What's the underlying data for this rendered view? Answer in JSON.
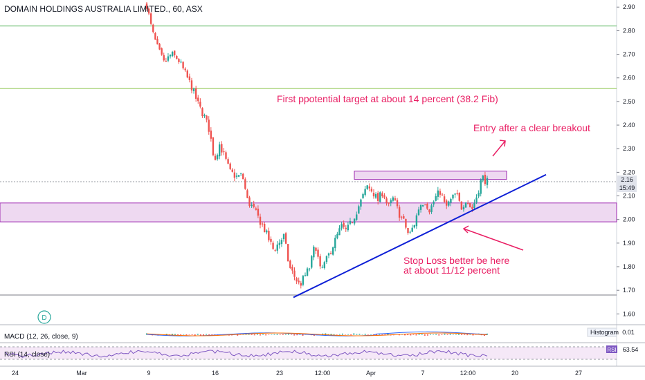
{
  "chart_data": {
    "type": "candlestick",
    "title": "DOMAIN HOLDINGS AUSTRALIA LIMITED., 60, ASX",
    "ylim": [
      1.56,
      2.93
    ],
    "y_ticks": [
      "2.90",
      "2.80",
      "2.70",
      "2.60",
      "2.50",
      "2.40",
      "2.30",
      "2.20",
      "2.10",
      "2.00",
      "1.90",
      "1.80",
      "1.70",
      "1.60"
    ],
    "price_label": "2.16",
    "time_label": "15:49",
    "x_ticks": [
      "24",
      "Mar",
      "9",
      "16",
      "23",
      "12:00",
      "Apr",
      "7",
      "12:00",
      "20",
      "27"
    ],
    "horizontal_levels": [
      {
        "price": 2.82,
        "color": "#4caf50"
      },
      {
        "price": 2.555,
        "color": "#8bc34a"
      },
      {
        "price": 1.68,
        "color": "#787b86"
      },
      {
        "price": 2.16,
        "color": "#9598a1",
        "dashed": true
      }
    ],
    "support_zone": {
      "from": 1.99,
      "to": 2.07,
      "color": "#ce93d8"
    },
    "resistance_box": {
      "from": 2.17,
      "to": 2.205,
      "color": "#ce93d8"
    },
    "trendline": {
      "start": 1.67,
      "end": 2.19,
      "color": "#0d1fd6"
    },
    "annotations": [
      {
        "text": "First ppotential target at about 14 percent (38.2 Fib)",
        "color": "#e91e63"
      },
      {
        "text": "Entry after a clear breakout",
        "color": "#e91e63"
      },
      {
        "text": "Stop Loss better be here",
        "color": "#e91e63"
      },
      {
        "text": "at about 11/12 percent",
        "color": "#e91e63"
      }
    ],
    "close_path": [
      [
        0,
        2.91
      ],
      [
        3,
        2.8
      ],
      [
        6,
        2.73
      ],
      [
        10,
        2.66
      ],
      [
        14,
        2.7
      ],
      [
        18,
        2.68
      ],
      [
        22,
        2.62
      ],
      [
        26,
        2.56
      ],
      [
        30,
        2.48
      ],
      [
        33,
        2.44
      ],
      [
        36,
        2.38
      ],
      [
        39,
        2.25
      ],
      [
        42,
        2.32
      ],
      [
        45,
        2.26
      ],
      [
        48,
        2.2
      ],
      [
        52,
        2.18
      ],
      [
        55,
        2.19
      ],
      [
        58,
        2.08
      ],
      [
        61,
        2.05
      ],
      [
        64,
        2.01
      ],
      [
        67,
        1.97
      ],
      [
        70,
        1.92
      ],
      [
        73,
        1.87
      ],
      [
        76,
        1.9
      ],
      [
        79,
        1.93
      ],
      [
        82,
        1.8
      ],
      [
        85,
        1.76
      ],
      [
        88,
        1.72
      ],
      [
        91,
        1.76
      ],
      [
        94,
        1.8
      ],
      [
        97,
        1.9
      ],
      [
        100,
        1.78
      ],
      [
        103,
        1.82
      ],
      [
        106,
        1.87
      ],
      [
        109,
        1.92
      ],
      [
        112,
        1.97
      ],
      [
        115,
        1.95
      ],
      [
        118,
        1.99
      ],
      [
        121,
        2.04
      ],
      [
        124,
        2.09
      ],
      [
        127,
        2.14
      ],
      [
        130,
        2.12
      ],
      [
        133,
        2.08
      ],
      [
        136,
        2.12
      ],
      [
        139,
        2.05
      ],
      [
        142,
        2.09
      ],
      [
        145,
        2.03
      ],
      [
        148,
        1.99
      ],
      [
        151,
        1.93
      ],
      [
        154,
        1.98
      ],
      [
        157,
        2.06
      ],
      [
        160,
        2.08
      ],
      [
        163,
        2.04
      ],
      [
        166,
        2.09
      ],
      [
        169,
        2.12
      ],
      [
        172,
        2.05
      ],
      [
        175,
        2.08
      ],
      [
        178,
        2.11
      ],
      [
        181,
        2.05
      ],
      [
        184,
        2.09
      ],
      [
        187,
        2.04
      ],
      [
        190,
        2.1
      ],
      [
        193,
        2.18
      ],
      [
        196,
        2.16
      ]
    ],
    "indicators": [
      {
        "label": "MACD (12, 26, close, 9)",
        "value_label": "Histogram",
        "value": "0.01"
      },
      {
        "label": "RSI (14, close)",
        "value_label": "RSI",
        "value": "63.54"
      }
    ]
  },
  "header": {
    "title": "DOMAIN HOLDINGS AUSTRALIA LIMITED., 60, ASX"
  },
  "marker": {
    "letter": "D"
  },
  "colors": {
    "up": "#26a69a",
    "down": "#ef5350",
    "macd": "#2962ff",
    "signal": "#ff6d00",
    "rsi": "#7e57c2",
    "magenta": "#e91e63"
  },
  "ui": {
    "dividend_marker": "dividend-marker-icon"
  }
}
